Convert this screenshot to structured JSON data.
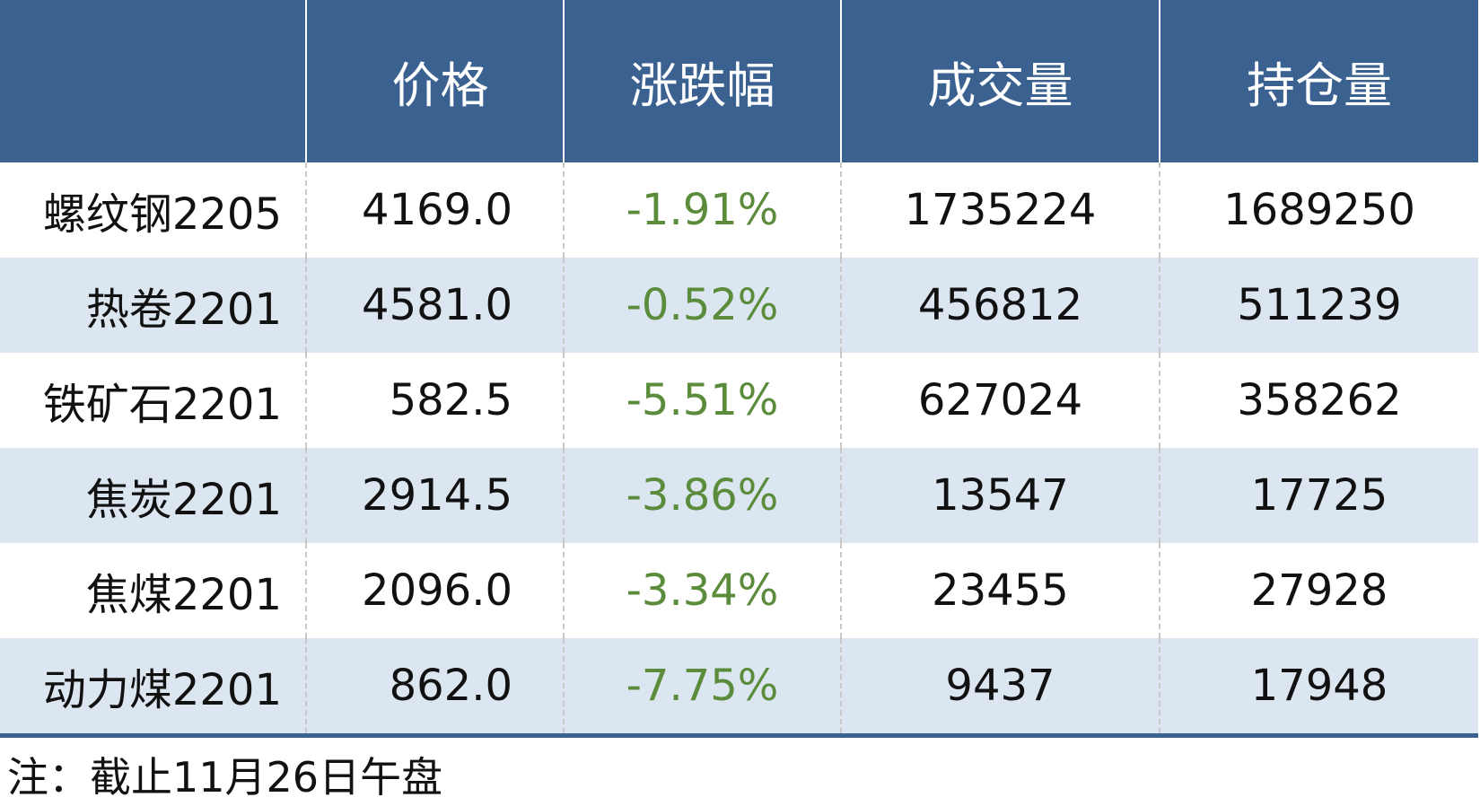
{
  "table": {
    "header": [
      "价格",
      "涨跌幅",
      "成交量",
      "持仓量"
    ],
    "rows": [
      [
        "螺纹钢2205",
        "4169.0",
        "-1.91%",
        "1735224",
        "1689250"
      ],
      [
        "热卷2201",
        "4581.0",
        "-0.52%",
        "456812",
        "511239"
      ],
      [
        "铁矿石2201",
        "582.5",
        "-5.51%",
        "627024",
        "358262"
      ],
      [
        "焦炭2201",
        "2914.5",
        "-3.86%",
        "13547",
        "17725"
      ],
      [
        "焦煤2201",
        "2096.0",
        "-3.34%",
        "23455",
        "27928"
      ],
      [
        "动力煤2201",
        "862.0",
        "-7.75%",
        "9437",
        "17948"
      ]
    ]
  },
  "note": "注：截止11月26日午盘"
}
